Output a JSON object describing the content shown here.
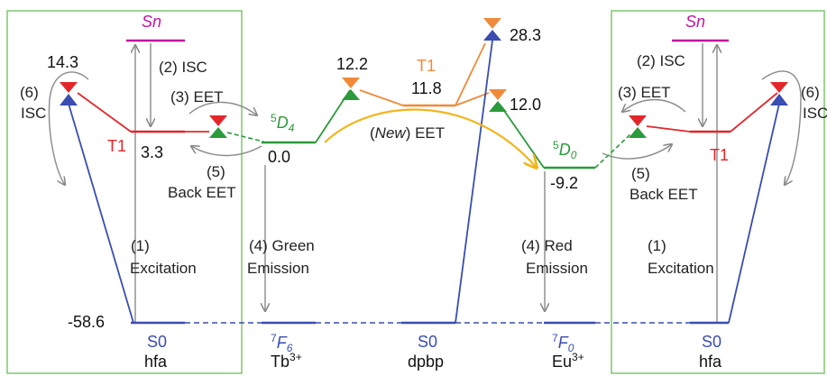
{
  "colors": {
    "box": "#7fc86a",
    "hfa_blue": "#3a4db0",
    "s0_blue": "#3a4db0",
    "singlet_magenta": "#c0169e",
    "t1_red": "#e4262a",
    "t1_orange": "#f08a3a",
    "green_level": "#2a9a3a",
    "arrow_gray": "#8a8a8a",
    "new_eet": "#f2b51e",
    "dashed": "#3a4db0"
  },
  "left_hfa": {
    "sn_label": "Sn",
    "isc_label": "(2) ISC",
    "eet_label": "(3) EET",
    "isc6_num": "(6)",
    "isc6_text": "ISC",
    "t1_label": "T1",
    "t1_energy": "3.3",
    "top_energy": "14.3",
    "back_eet_num": "(5)",
    "back_eet_text": "Back EET",
    "excitation_num": "(1)",
    "excitation_text": "Excitation",
    "s0_energy": "-58.6",
    "s0_label": "S0",
    "name": "hfa"
  },
  "tb": {
    "level_label": "5D4",
    "level_energy": "0.0",
    "emission_num": "(4) Green",
    "emission_text": "Emission",
    "ground_label": "7F6",
    "ion_label": "Tb3+"
  },
  "dpbp": {
    "t1_label": "T1",
    "left_energy": "12.2",
    "mid_energy": "11.8",
    "top_energy": "28.3",
    "right_energy": "12.0",
    "new_eet_label": "(New) EET",
    "s0_label": "S0",
    "name": "dpbp"
  },
  "eu": {
    "level_label": "5D0",
    "level_energy": "-9.2",
    "emission_num": "(4) Red",
    "emission_text": "Emission",
    "ground_label": "7F0",
    "ion_label": "Eu3+"
  },
  "right_hfa": {
    "sn_label": "Sn",
    "isc_label": "(2) ISC",
    "eet_label": "(3) EET",
    "isc6_num": "(6)",
    "isc6_text": "ISC",
    "t1_label": "T1",
    "back_eet_num": "(5)",
    "back_eet_text": "Back EET",
    "excitation_num": "(1)",
    "excitation_text": "Excitation",
    "s0_label": "S0",
    "name": "hfa"
  }
}
